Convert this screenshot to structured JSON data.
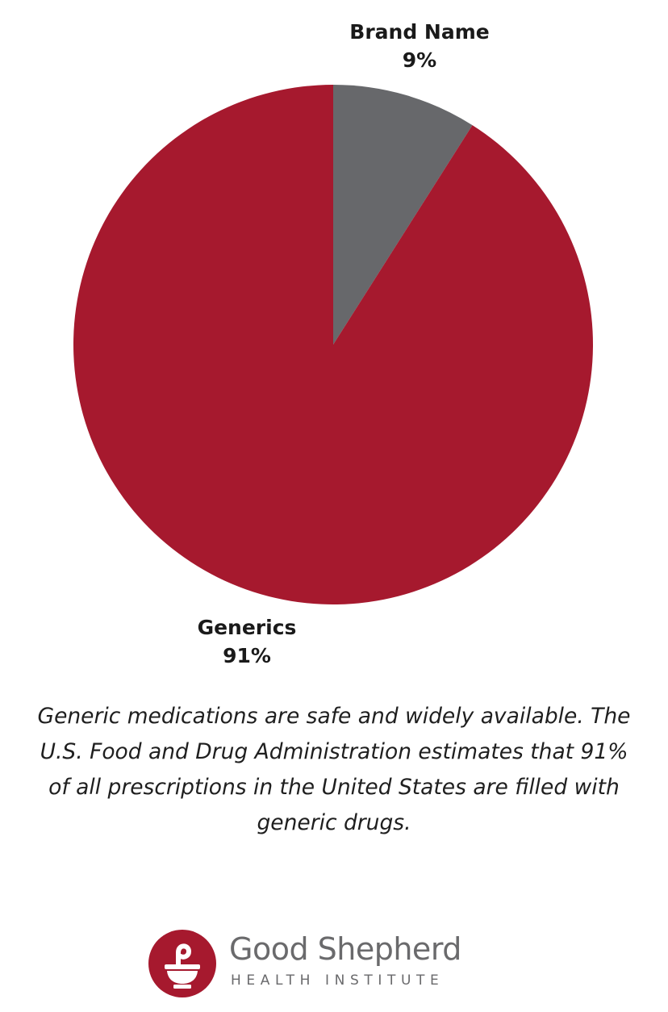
{
  "chart_data": {
    "type": "pie",
    "slices": [
      {
        "label": "Brand Name",
        "value": 9,
        "value_label": "9%",
        "color": "#67686b"
      },
      {
        "label": "Generics",
        "value": 91,
        "value_label": "91%",
        "color": "#a6192e"
      }
    ]
  },
  "caption": "Generic medications are safe and widely available. The U.S. Food and Drug Administration estimates that 91% of all prescriptions in the United States are filled with generic drugs.",
  "logo": {
    "name": "Good Shepherd",
    "subtitle": "HEALTH INSTITUTE",
    "brand_color": "#a6192e",
    "text_color": "#6a6a6c",
    "icon": "mortar-and-pestle-icon"
  }
}
